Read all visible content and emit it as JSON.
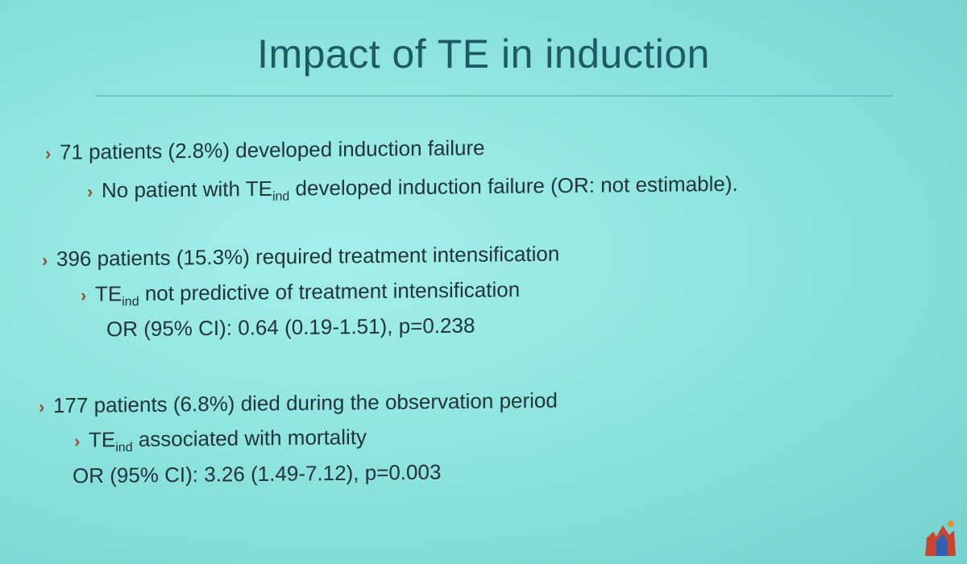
{
  "title": "Impact of TE in induction",
  "blocks": [
    {
      "main": "71 patients (2.8%) developed induction failure",
      "sub": {
        "prefix": "No patient with TE",
        "subscript": "ind",
        "suffix": " developed induction failure (OR: not estimable)."
      }
    },
    {
      "main": "396 patients (15.3%) required treatment intensification",
      "sub": {
        "prefix": "TE",
        "subscript": "ind",
        "suffix": " not predictive of treatment intensification"
      },
      "stat": "OR (95% CI): 0.64 (0.19-1.51), p=0.238"
    },
    {
      "main": "177 patients (6.8%) died during the observation period",
      "sub": {
        "prefix": "TE",
        "subscript": "ind",
        "suffix": " associated with mortality"
      },
      "stat": "OR (95% CI): 3.26 (1.49-7.12), p=0.003"
    }
  ],
  "bullet_glyph": "›",
  "colors": {
    "background": "#8fe4df",
    "title": "#1e5a63",
    "text": "#21343a",
    "bullet": "#9a4c2c"
  }
}
